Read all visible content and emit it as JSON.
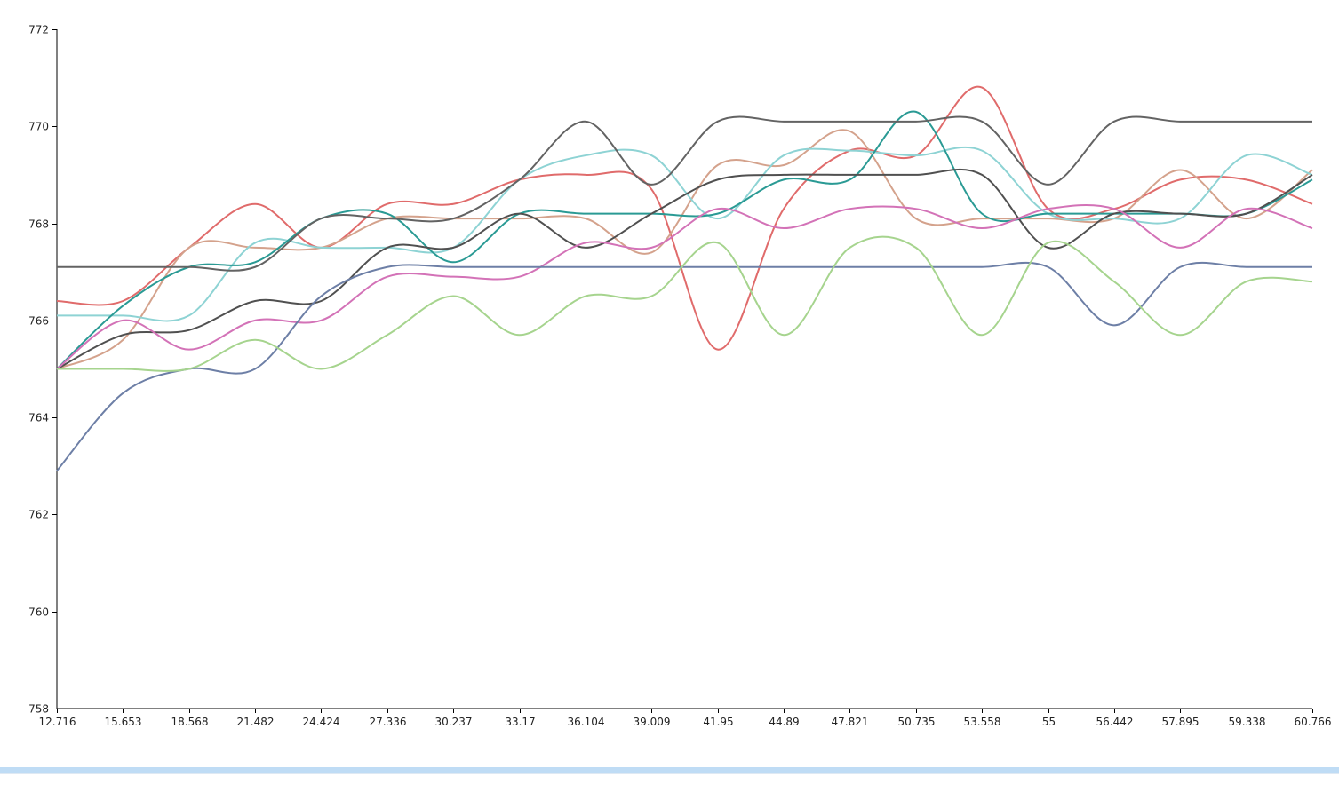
{
  "chart_data": {
    "type": "line",
    "title": "",
    "xlabel": "",
    "ylabel": "",
    "x": [
      12.716,
      15.653,
      18.568,
      21.482,
      24.424,
      27.336,
      30.237,
      33.17,
      36.104,
      39.009,
      41.95,
      44.89,
      47.821,
      50.735,
      53.558,
      55,
      56.442,
      57.895,
      59.338,
      60.766
    ],
    "x_tick_labels": [
      "12.716",
      "15.653",
      "18.568",
      "21.482",
      "24.424",
      "27.336",
      "30.237",
      "33.17",
      "36.104",
      "39.009",
      "41.95",
      "44.89",
      "47.821",
      "50.735",
      "53.558",
      "55",
      "56.442",
      "57.895",
      "59.338",
      "60.766"
    ],
    "y_ticks": [
      758,
      760,
      762,
      764,
      766,
      768,
      770,
      772
    ],
    "ylim": [
      758,
      772
    ],
    "grid": false,
    "legend": "none",
    "series": [
      {
        "color": "#e06b6b",
        "values": [
          766.4,
          766.4,
          767.5,
          768.4,
          767.5,
          768.4,
          768.4,
          768.9,
          769.0,
          768.7,
          765.4,
          768.3,
          769.5,
          769.4,
          770.8,
          768.3,
          768.3,
          768.9,
          768.9,
          768.4
        ]
      },
      {
        "color": "#d4a28c",
        "values": [
          765.0,
          765.6,
          767.5,
          767.5,
          767.5,
          768.1,
          768.1,
          768.1,
          768.1,
          767.4,
          769.2,
          769.2,
          769.9,
          768.1,
          768.1,
          768.1,
          768.1,
          769.1,
          768.1,
          769.1
        ]
      },
      {
        "color": "#8ed3d4",
        "values": [
          766.1,
          766.1,
          766.1,
          767.6,
          767.5,
          767.5,
          767.5,
          768.9,
          769.4,
          769.4,
          768.1,
          769.4,
          769.5,
          769.4,
          769.5,
          768.2,
          768.1,
          768.1,
          769.4,
          769.0
        ]
      },
      {
        "color": "#2a9a94",
        "values": [
          765.0,
          766.3,
          767.1,
          767.2,
          768.1,
          768.2,
          767.2,
          768.2,
          768.2,
          768.2,
          768.2,
          768.9,
          768.9,
          770.3,
          768.2,
          768.2,
          768.2,
          768.2,
          768.2,
          768.9
        ]
      },
      {
        "color": "#636363",
        "values": [
          767.1,
          767.1,
          767.1,
          767.1,
          768.1,
          768.1,
          768.1,
          768.9,
          770.1,
          768.8,
          770.1,
          770.1,
          770.1,
          770.1,
          770.1,
          768.8,
          770.1,
          770.1,
          770.1,
          770.1
        ]
      },
      {
        "color": "#505050",
        "values": [
          765.0,
          765.7,
          765.8,
          766.4,
          766.4,
          767.5,
          767.5,
          768.2,
          767.5,
          768.2,
          768.9,
          769.0,
          769.0,
          769.0,
          769.0,
          767.5,
          768.2,
          768.2,
          768.2,
          769.0
        ]
      },
      {
        "color": "#d372b7",
        "values": [
          765.0,
          766.0,
          765.4,
          766.0,
          766.0,
          766.9,
          766.9,
          766.9,
          767.6,
          767.5,
          768.3,
          767.9,
          768.3,
          768.3,
          767.9,
          768.3,
          768.3,
          767.5,
          768.3,
          767.9
        ]
      },
      {
        "color": "#6d7fa6",
        "values": [
          762.9,
          764.5,
          765.0,
          765.0,
          766.5,
          767.1,
          767.1,
          767.1,
          767.1,
          767.1,
          767.1,
          767.1,
          767.1,
          767.1,
          767.1,
          767.1,
          765.9,
          767.1,
          767.1,
          767.1
        ]
      },
      {
        "color": "#a6d48e",
        "values": [
          765.0,
          765.0,
          765.0,
          765.6,
          765.0,
          765.7,
          766.5,
          765.7,
          766.5,
          766.5,
          767.6,
          765.7,
          767.5,
          767.5,
          765.7,
          767.6,
          766.8,
          765.7,
          766.8,
          766.8
        ]
      }
    ]
  }
}
